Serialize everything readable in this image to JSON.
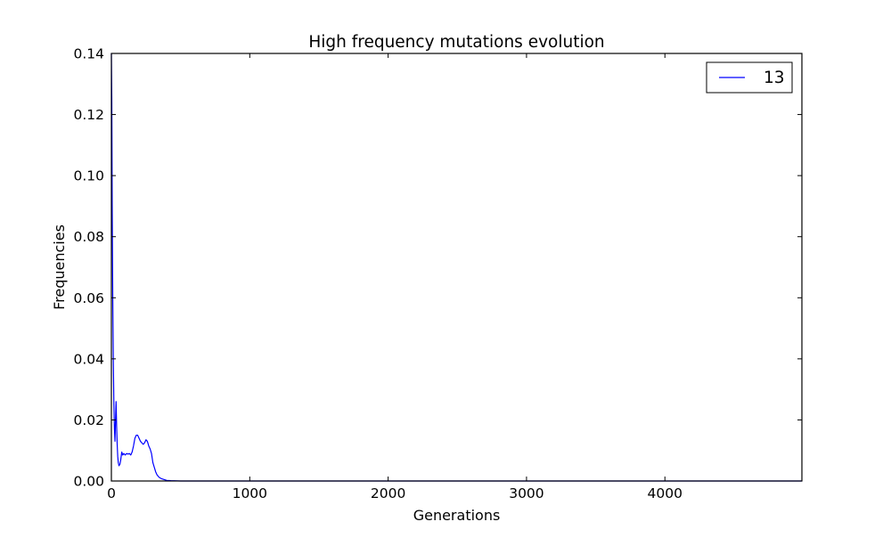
{
  "chart_data": {
    "type": "line",
    "title": "High frequency mutations evolution",
    "xlabel": "Generations",
    "ylabel": "Frequencies",
    "xlim": [
      0,
      4990
    ],
    "ylim": [
      0,
      0.14
    ],
    "xticks": [
      0,
      1000,
      2000,
      3000,
      4000
    ],
    "xtick_labels": [
      "0",
      "1000",
      "2000",
      "3000",
      "4000"
    ],
    "yticks": [
      0,
      0.02,
      0.04,
      0.06,
      0.08,
      0.1,
      0.12,
      0.14
    ],
    "ytick_labels": [
      "0.00",
      "0.02",
      "0.04",
      "0.06",
      "0.08",
      "0.10",
      "0.12",
      "0.14"
    ],
    "grid": false,
    "legend": {
      "position": "top-right"
    },
    "series": [
      {
        "name": "13",
        "color": "#0000ff",
        "points": [
          [
            0,
            0.14
          ],
          [
            3,
            0.125
          ],
          [
            6,
            0.09
          ],
          [
            10,
            0.06
          ],
          [
            14,
            0.04
          ],
          [
            18,
            0.025
          ],
          [
            22,
            0.017
          ],
          [
            26,
            0.013
          ],
          [
            30,
            0.02
          ],
          [
            34,
            0.026
          ],
          [
            38,
            0.018
          ],
          [
            42,
            0.012
          ],
          [
            46,
            0.008
          ],
          [
            50,
            0.006
          ],
          [
            55,
            0.005
          ],
          [
            62,
            0.0055
          ],
          [
            68,
            0.007
          ],
          [
            75,
            0.0095
          ],
          [
            82,
            0.0085
          ],
          [
            90,
            0.009
          ],
          [
            100,
            0.0085
          ],
          [
            110,
            0.009
          ],
          [
            120,
            0.0088
          ],
          [
            130,
            0.009
          ],
          [
            140,
            0.0085
          ],
          [
            150,
            0.0095
          ],
          [
            160,
            0.0115
          ],
          [
            170,
            0.014
          ],
          [
            180,
            0.015
          ],
          [
            190,
            0.015
          ],
          [
            200,
            0.014
          ],
          [
            210,
            0.013
          ],
          [
            220,
            0.0125
          ],
          [
            230,
            0.012
          ],
          [
            240,
            0.0125
          ],
          [
            250,
            0.0135
          ],
          [
            260,
            0.013
          ],
          [
            270,
            0.0115
          ],
          [
            280,
            0.0105
          ],
          [
            290,
            0.009
          ],
          [
            300,
            0.006
          ],
          [
            310,
            0.0045
          ],
          [
            320,
            0.003
          ],
          [
            330,
            0.002
          ],
          [
            345,
            0.0012
          ],
          [
            360,
            0.0008
          ],
          [
            380,
            0.0005
          ],
          [
            400,
            0.0002
          ],
          [
            430,
            0.0001
          ],
          [
            500,
            0
          ],
          [
            1000,
            0
          ],
          [
            2000,
            0
          ],
          [
            3000,
            0
          ],
          [
            4000,
            0
          ],
          [
            4990,
            0
          ]
        ]
      }
    ]
  }
}
